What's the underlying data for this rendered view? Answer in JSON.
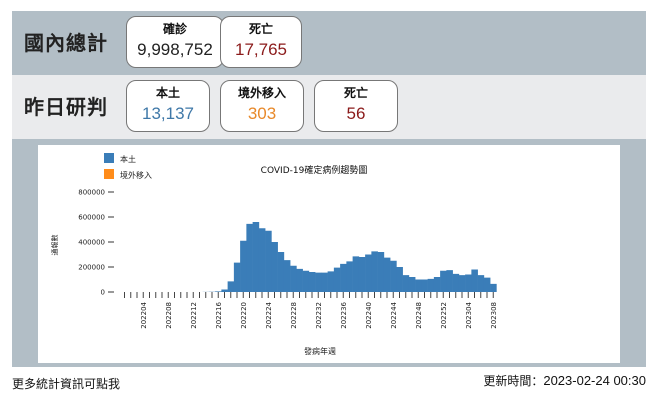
{
  "totals": {
    "label": "國內總計",
    "confirmed": {
      "label": "確診",
      "value": "9,998,752",
      "color": "#222222"
    },
    "deaths": {
      "label": "死亡",
      "value": "17,765",
      "color": "#8b1a1a"
    }
  },
  "yesterday": {
    "label": "昨日研判",
    "local": {
      "label": "本土",
      "value": "13,137",
      "color": "#3f78a8"
    },
    "imported": {
      "label": "境外移入",
      "value": "303",
      "color": "#e8892a"
    },
    "deaths": {
      "label": "死亡",
      "value": "56",
      "color": "#8b1a1a"
    }
  },
  "footer": {
    "more_link": "更多統計資訊可點我",
    "updated_label": "更新時間：",
    "updated_value": "2023-02-24 00:30"
  },
  "chart_data": {
    "type": "bar",
    "title": "COVID-19確定病例趨勢圖",
    "xlabel": "發病年週",
    "ylabel": "通報數",
    "ylim": [
      0,
      800000
    ],
    "yticks": [
      0,
      200000,
      400000,
      600000,
      800000
    ],
    "stacked": true,
    "legend": [
      {
        "name": "本土",
        "color": "#3a7db8"
      },
      {
        "name": "境外移入",
        "color": "#ff8c1a"
      }
    ],
    "legend_position": "top-left",
    "x_tick_labels": [
      "202204",
      "202208",
      "202212",
      "202216",
      "202220",
      "202224",
      "202228",
      "202232",
      "202236",
      "202240",
      "202244",
      "202248",
      "202252",
      "202304",
      "202308"
    ],
    "categories": [
      "202201",
      "202202",
      "202203",
      "202204",
      "202205",
      "202206",
      "202207",
      "202208",
      "202209",
      "202210",
      "202211",
      "202212",
      "202213",
      "202214",
      "202215",
      "202216",
      "202217",
      "202218",
      "202219",
      "202220",
      "202221",
      "202222",
      "202223",
      "202224",
      "202225",
      "202226",
      "202227",
      "202228",
      "202229",
      "202230",
      "202231",
      "202232",
      "202233",
      "202234",
      "202235",
      "202236",
      "202237",
      "202238",
      "202239",
      "202240",
      "202241",
      "202242",
      "202243",
      "202244",
      "202245",
      "202246",
      "202247",
      "202248",
      "202249",
      "202250",
      "202251",
      "202252",
      "202301",
      "202302",
      "202303",
      "202304",
      "202305",
      "202306",
      "202307",
      "202308"
    ],
    "series": [
      {
        "name": "本土",
        "values": [
          0,
          0,
          0,
          0,
          0,
          0,
          0,
          0,
          0,
          0,
          0,
          0,
          0,
          1000,
          2000,
          5000,
          20000,
          85000,
          235000,
          410000,
          545000,
          560000,
          510000,
          490000,
          400000,
          320000,
          255000,
          210000,
          185000,
          170000,
          160000,
          155000,
          155000,
          165000,
          195000,
          225000,
          245000,
          285000,
          280000,
          300000,
          325000,
          320000,
          275000,
          250000,
          200000,
          135000,
          120000,
          100000,
          100000,
          105000,
          120000,
          170000,
          175000,
          145000,
          135000,
          140000,
          180000,
          135000,
          115000,
          65000
        ]
      },
      {
        "name": "境外移入",
        "values": [
          0,
          0,
          0,
          0,
          0,
          0,
          0,
          0,
          0,
          0,
          0,
          0,
          0,
          0,
          0,
          0,
          0,
          0,
          0,
          0,
          0,
          0,
          0,
          0,
          0,
          0,
          0,
          0,
          0,
          0,
          0,
          0,
          0,
          0,
          0,
          0,
          0,
          0,
          0,
          0,
          0,
          0,
          0,
          0,
          0,
          0,
          0,
          0,
          0,
          0,
          0,
          0,
          0,
          0,
          0,
          0,
          0,
          0,
          0,
          0
        ]
      }
    ],
    "grid": false
  }
}
